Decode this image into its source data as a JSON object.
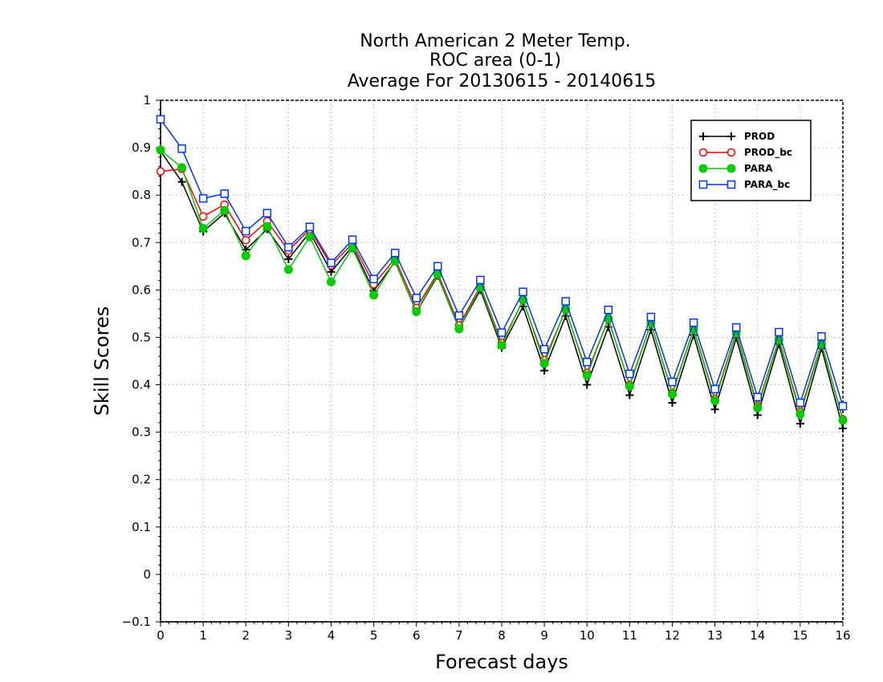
{
  "chart_data": {
    "type": "line",
    "title_lines": [
      "North American 2 Meter Temp.",
      "ROC area (0-1)",
      "Average For 20130615 - 20140615"
    ],
    "xlabel": "Forecast days",
    "ylabel": "Skill Scores",
    "xlim": [
      0,
      16
    ],
    "ylim": [
      -0.1,
      1
    ],
    "xticks": [
      "0",
      "1",
      "2",
      "3",
      "4",
      "5",
      "6",
      "7",
      "8",
      "9",
      "10",
      "11",
      "12",
      "13",
      "14",
      "15",
      "16"
    ],
    "yticks": [
      "−0.1",
      "0",
      "0.1",
      "0.2",
      "0.3",
      "0.4",
      "0.5",
      "0.6",
      "0.7",
      "0.8",
      "0.9",
      "1"
    ],
    "grid": true,
    "legend_position": "top-right",
    "x": [
      0,
      0.5,
      1,
      1.5,
      2,
      2.5,
      3,
      3.5,
      4,
      4.5,
      5,
      5.5,
      6,
      6.5,
      7,
      7.5,
      8,
      8.5,
      9,
      9.5,
      10,
      10.5,
      11,
      11.5,
      12,
      12.5,
      13,
      13.5,
      14,
      14.5,
      15,
      15.5,
      16
    ],
    "series": [
      {
        "name": "PROD",
        "color": "#000000",
        "marker": "plus",
        "values": [
          0.893,
          0.828,
          0.723,
          0.762,
          0.685,
          0.728,
          0.665,
          0.722,
          0.638,
          0.692,
          0.598,
          0.66,
          0.553,
          0.63,
          0.518,
          0.6,
          0.478,
          0.565,
          0.43,
          0.545,
          0.4,
          0.522,
          0.378,
          0.516,
          0.362,
          0.505,
          0.348,
          0.499,
          0.336,
          0.486,
          0.318,
          0.477,
          0.308
        ]
      },
      {
        "name": "PROD_bc",
        "color": "#ff0000",
        "marker": "open-circle",
        "values": [
          0.85,
          0.855,
          0.755,
          0.78,
          0.705,
          0.745,
          0.683,
          0.728,
          0.652,
          0.698,
          0.612,
          0.666,
          0.562,
          0.636,
          0.525,
          0.608,
          0.488,
          0.578,
          0.452,
          0.558,
          0.425,
          0.538,
          0.4,
          0.53,
          0.383,
          0.518,
          0.37,
          0.511,
          0.355,
          0.497,
          0.343,
          0.488,
          0.327
        ]
      },
      {
        "name": "PARA",
        "color": "#00cc00",
        "marker": "filled-circle",
        "values": [
          0.895,
          0.858,
          0.73,
          0.768,
          0.672,
          0.734,
          0.643,
          0.712,
          0.617,
          0.688,
          0.589,
          0.661,
          0.554,
          0.633,
          0.518,
          0.605,
          0.483,
          0.58,
          0.445,
          0.56,
          0.42,
          0.54,
          0.397,
          0.53,
          0.38,
          0.517,
          0.366,
          0.509,
          0.351,
          0.495,
          0.338,
          0.486,
          0.325
        ]
      },
      {
        "name": "PARA_bc",
        "color": "#0033ff",
        "marker": "open-square",
        "values": [
          0.96,
          0.898,
          0.793,
          0.803,
          0.724,
          0.762,
          0.69,
          0.733,
          0.657,
          0.706,
          0.623,
          0.678,
          0.583,
          0.65,
          0.546,
          0.621,
          0.51,
          0.596,
          0.475,
          0.576,
          0.448,
          0.558,
          0.423,
          0.543,
          0.406,
          0.531,
          0.391,
          0.521,
          0.374,
          0.511,
          0.362,
          0.502,
          0.355
        ]
      }
    ]
  }
}
